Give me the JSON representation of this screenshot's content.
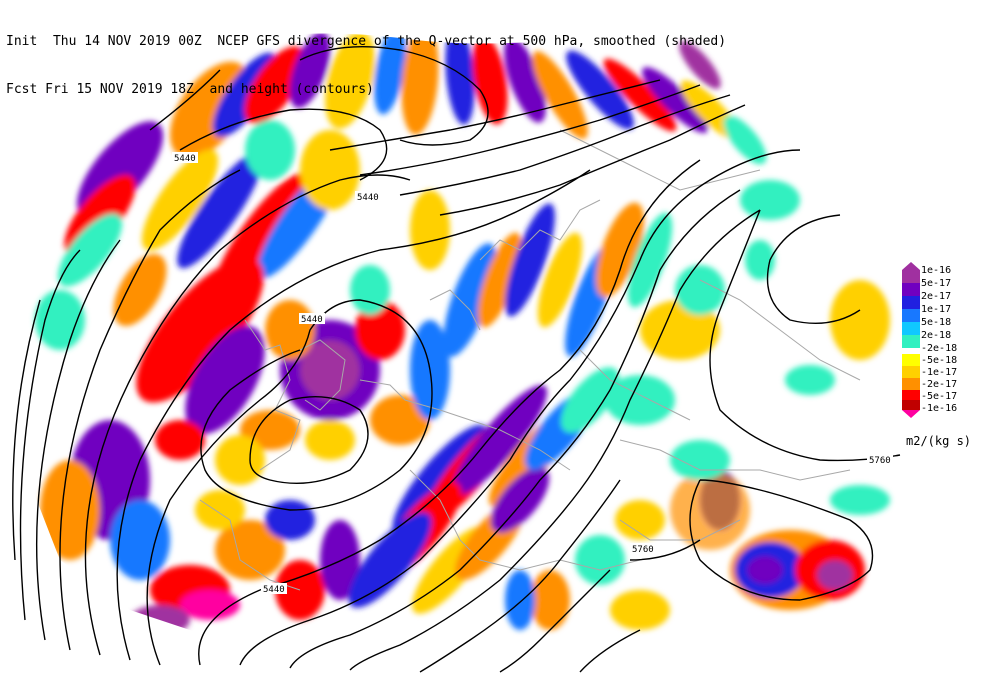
{
  "header": {
    "init_label": "Init",
    "init_time": "Thu 14 NOV 2019 00Z",
    "fcst_label": "Fcst",
    "fcst_time": "Fri 15 NOV 2019 18Z",
    "title_line1": "NCEP GFS divergence of the Q-vector at 500 hPa, smoothed (shaded)",
    "title_line2": "and height (contours)"
  },
  "legend": {
    "units": "m2/(kg s)",
    "positive_labels": [
      "1e-16",
      "5e-17",
      "2e-17",
      "1e-17",
      "5e-18",
      "2e-18"
    ],
    "negative_labels": [
      "-2e-18",
      "-5e-18",
      "-1e-17",
      "-2e-17",
      "-5e-17",
      "-1e-16"
    ],
    "colors": {
      "pos_1e-16": "#a030a0",
      "pos_5e-17": "#7000c0",
      "pos_2e-17": "#2020e0",
      "pos_1e-17": "#1878ff",
      "pos_5e-18": "#10c8ff",
      "pos_2e-18": "#30f0c0",
      "neg_2e-18": "#ffff00",
      "neg_5e-18": "#ffd000",
      "neg_1e-17": "#ff9000",
      "neg_2e-17": "#ff0000",
      "neg_5e-17": "#c00000",
      "neg_1e-16": "#ff00a0"
    }
  },
  "contour_labels": [
    "5440",
    "5440",
    "5440",
    "5440",
    "5760",
    "5760"
  ]
}
